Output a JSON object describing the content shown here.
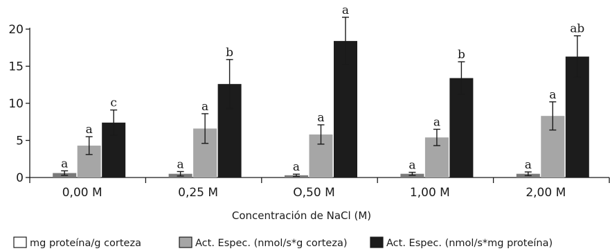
{
  "chart_data": {
    "type": "bar",
    "title": "",
    "xlabel": "Concentración de NaCl (M)",
    "ylabel": "",
    "ylim": [
      0,
      20
    ],
    "yticks": [
      "0",
      "5",
      "10",
      "15",
      "20"
    ],
    "grid": false,
    "legend_position": "bottom",
    "categories": [
      "0,00 M",
      "0,25 M",
      "O,50 M",
      "1,00 M",
      "2,00 M"
    ],
    "series": [
      {
        "name": "mg proteína/g corteza",
        "color": "#7a7a7a",
        "legend_swatch": "#ffffff",
        "values": [
          0.6,
          0.5,
          0.3,
          0.5,
          0.5
        ],
        "errors": [
          0.3,
          0.3,
          0.15,
          0.2,
          0.25
        ],
        "letters": [
          "a",
          "a",
          "a",
          "a",
          "a"
        ]
      },
      {
        "name": "Act. Espec. (nmol/s*g corteza)",
        "color": "#a6a6a6",
        "legend_swatch": "#a6a6a6",
        "values": [
          4.3,
          6.6,
          5.8,
          5.4,
          8.3
        ],
        "errors": [
          1.2,
          2.0,
          1.3,
          1.1,
          1.9
        ],
        "letters": [
          "a",
          "a",
          "a",
          "a",
          "a"
        ]
      },
      {
        "name": "Act. Espec. (nmol/s*mg proteína)",
        "color": "#1c1c1c",
        "legend_swatch": "#1c1c1c",
        "values": [
          7.4,
          12.6,
          18.4,
          13.4,
          16.3
        ],
        "errors": [
          1.7,
          3.3,
          3.2,
          2.2,
          2.8
        ],
        "letters": [
          "c",
          "b",
          "a",
          "b",
          "ab"
        ]
      }
    ]
  }
}
